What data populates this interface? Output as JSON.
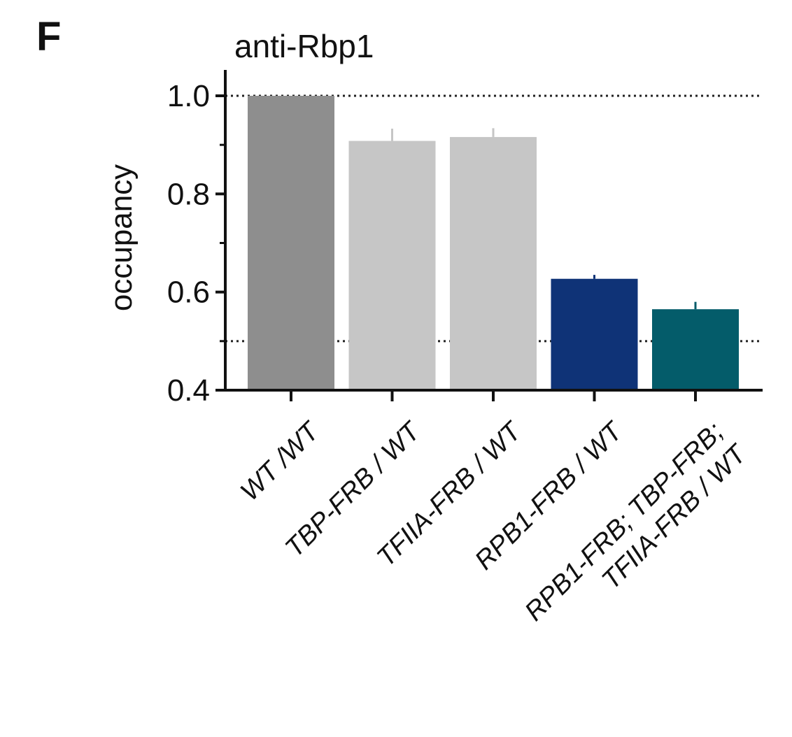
{
  "panel_label": "F",
  "chart_data": {
    "type": "bar",
    "title": "anti-Rbp1",
    "xlabel": "",
    "ylabel": "occupancy",
    "ylim": [
      0.4,
      1.0
    ],
    "yticks": [
      {
        "value": 0.4,
        "label": "0.4"
      },
      {
        "value": 0.6,
        "label": "0.6"
      },
      {
        "value": 0.8,
        "label": "0.8"
      },
      {
        "value": 1.0,
        "label": "1.0"
      }
    ],
    "categories": [
      [
        "WT /WT"
      ],
      [
        "TBP-FRB / WT"
      ],
      [
        "TFIIA-FRB / WT"
      ],
      [
        "RPB1-FRB / WT"
      ],
      [
        "RPB1-FRB; TBP-FRB;",
        "TFIIA-FRB / WT"
      ]
    ],
    "values": [
      1.0,
      0.908,
      0.916,
      0.627,
      0.565
    ],
    "errors": [
      0.0,
      0.025,
      0.018,
      0.008,
      0.015
    ],
    "colors": [
      "#8e8e8e",
      "#c6c6c6",
      "#c6c6c6",
      "#0f3377",
      "#045c6a"
    ],
    "reference_lines": [
      1.0,
      0.5
    ],
    "grid": false,
    "legend": "none"
  }
}
